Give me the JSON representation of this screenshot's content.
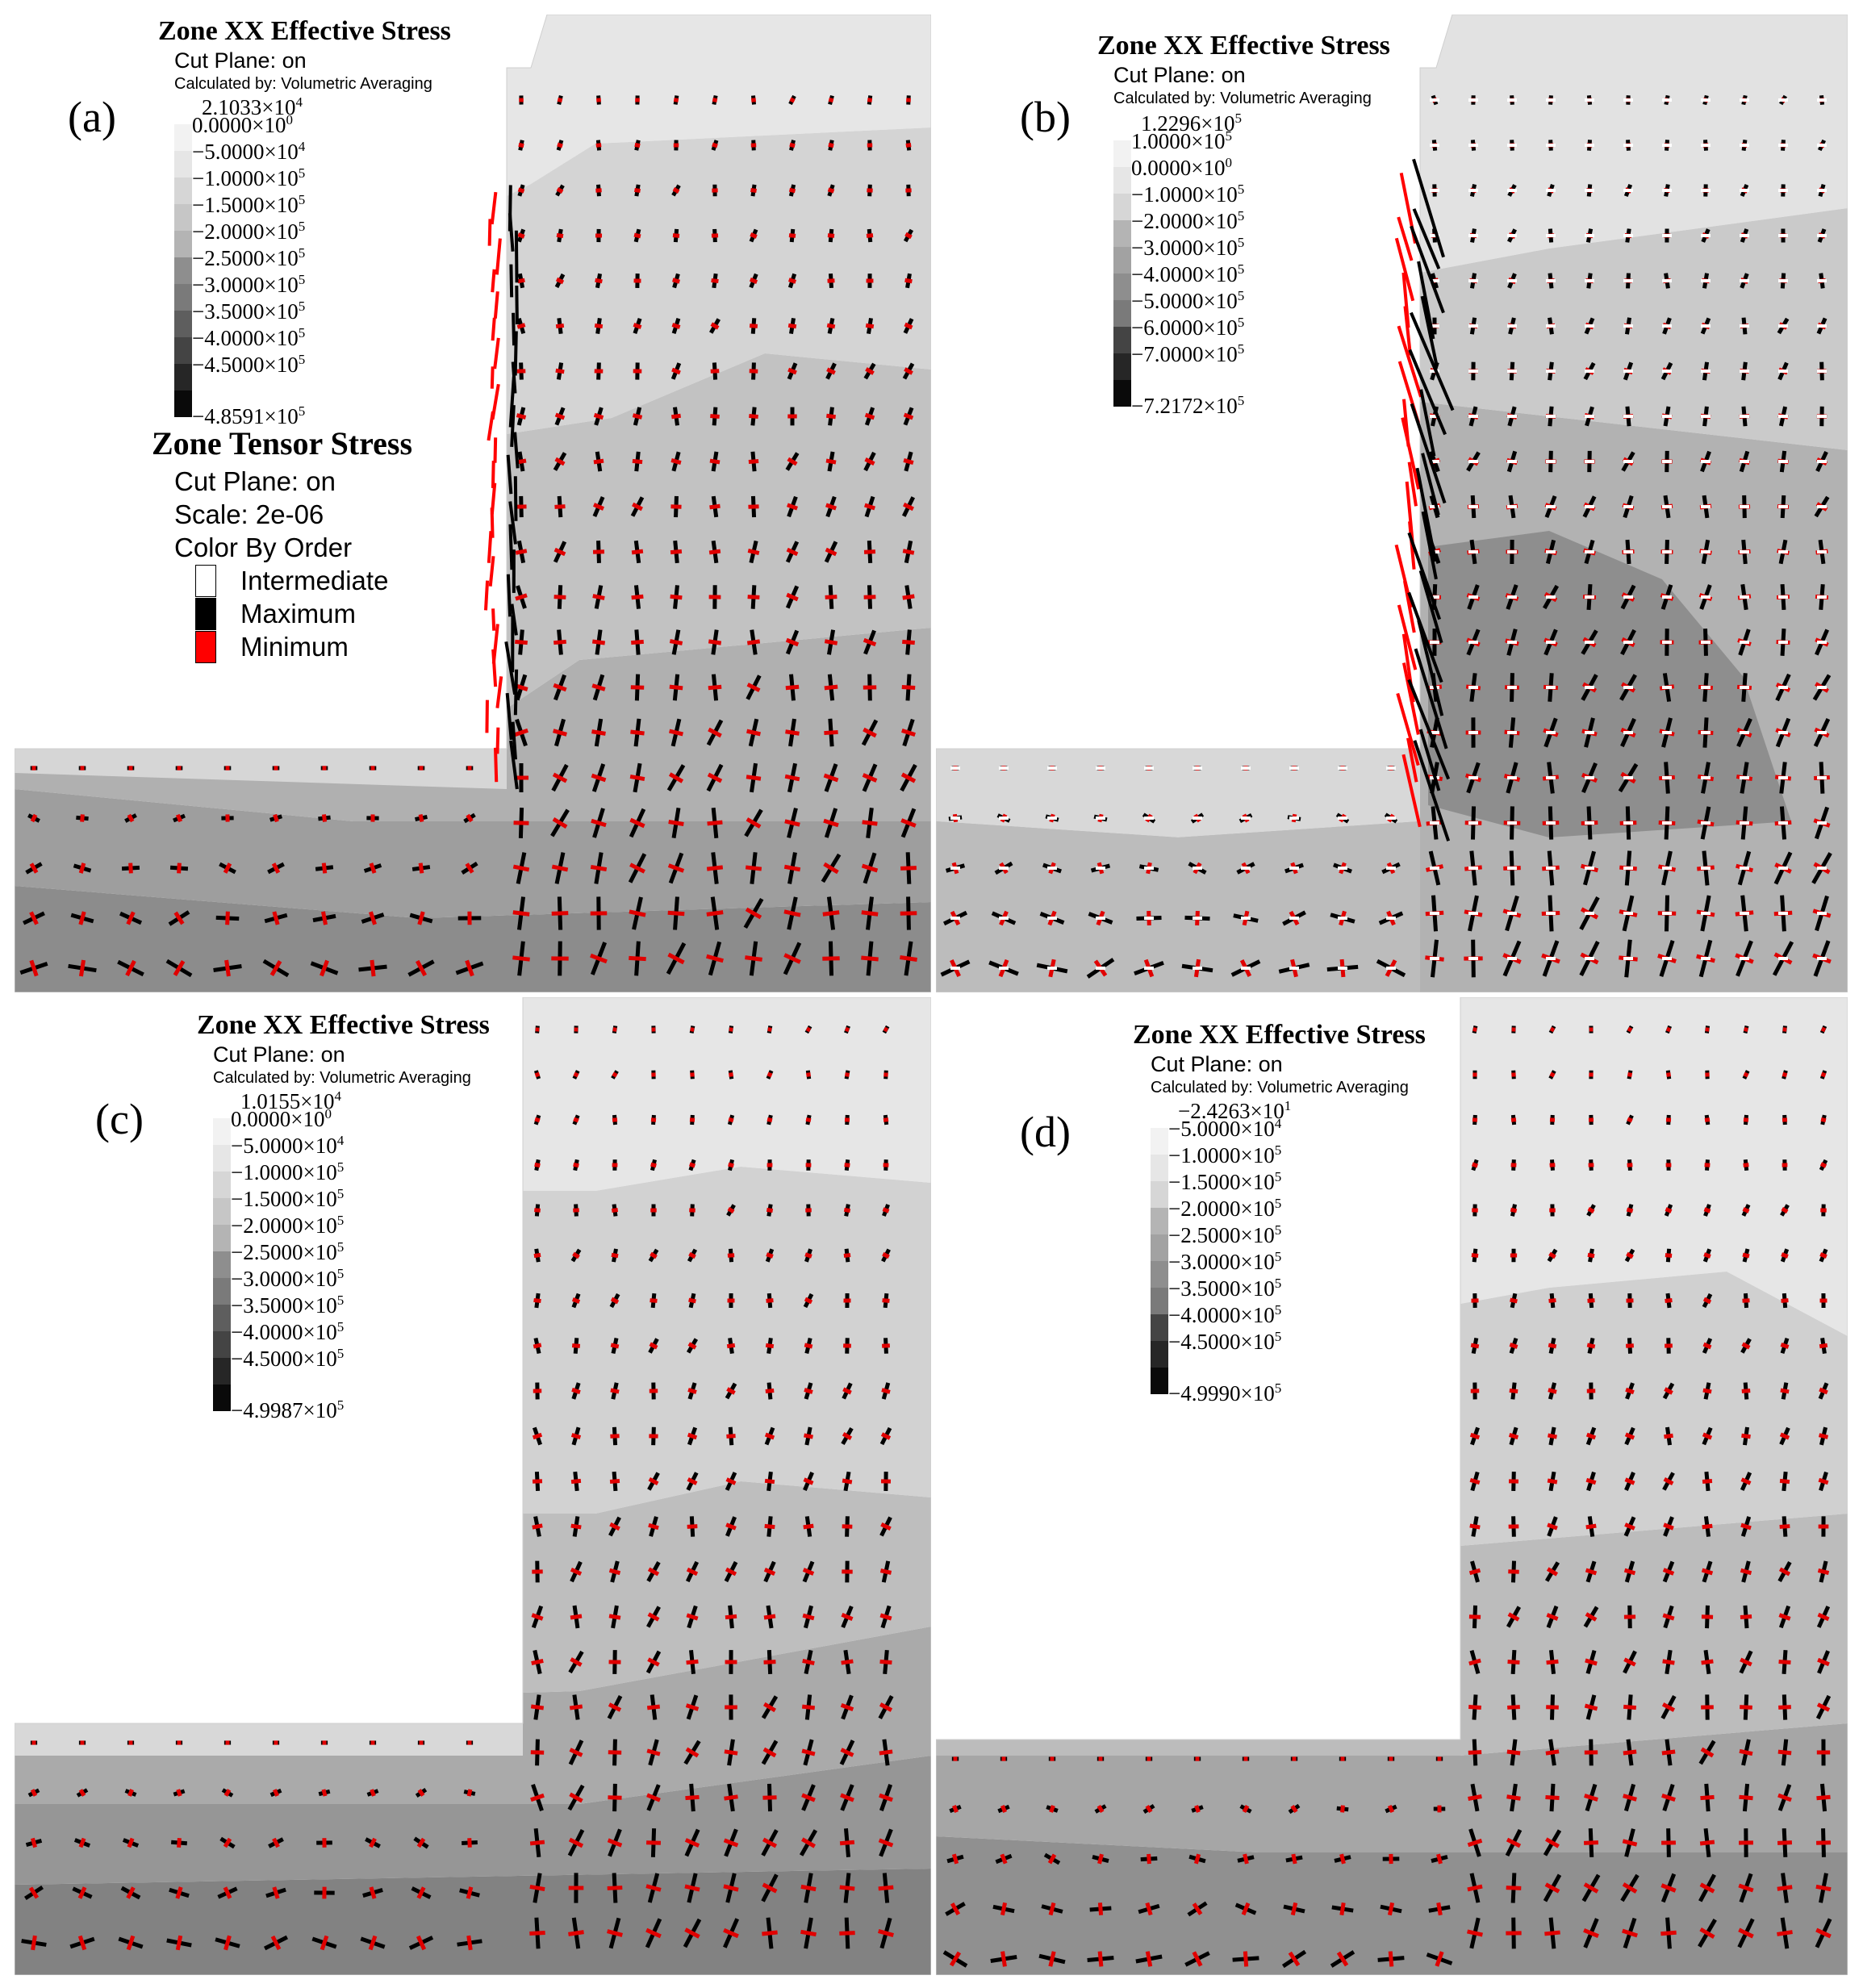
{
  "panels": [
    {
      "id": "a",
      "label": "(a)",
      "title": "Zone XX Effective Stress",
      "cut_plane": "Cut Plane: on",
      "calculated_by": "Calculated by: Volumetric Averaging",
      "legend_max": {
        "mant": "2.1033",
        "exp": "4",
        "sign": ""
      },
      "legend_rows": [
        {
          "mant": "0.0000",
          "exp": "0",
          "sign": ""
        },
        {
          "mant": "5.0000",
          "exp": "4",
          "sign": "−"
        },
        {
          "mant": "1.0000",
          "exp": "5",
          "sign": "−"
        },
        {
          "mant": "1.5000",
          "exp": "5",
          "sign": "−"
        },
        {
          "mant": "2.0000",
          "exp": "5",
          "sign": "−"
        },
        {
          "mant": "2.5000",
          "exp": "5",
          "sign": "−"
        },
        {
          "mant": "3.0000",
          "exp": "5",
          "sign": "−"
        },
        {
          "mant": "3.5000",
          "exp": "5",
          "sign": "−"
        },
        {
          "mant": "4.0000",
          "exp": "5",
          "sign": "−"
        },
        {
          "mant": "4.5000",
          "exp": "5",
          "sign": "−"
        }
      ],
      "legend_min": {
        "mant": "4.8591",
        "exp": "5",
        "sign": "−"
      },
      "tensor": {
        "title": "Zone Tensor Stress",
        "cut_plane": "Cut Plane: on",
        "scale": "Scale: 2e-06",
        "color_by": "Color By Order",
        "keys": [
          {
            "label": "Intermediate",
            "color": "#ffffff"
          },
          {
            "label": "Maximum",
            "color": "#000000"
          },
          {
            "label": "Minimum",
            "color": "#ff0000"
          }
        ]
      }
    },
    {
      "id": "b",
      "label": "(b)",
      "title": "Zone XX Effective Stress",
      "cut_plane": "Cut Plane: on",
      "calculated_by": "Calculated by: Volumetric Averaging",
      "legend_max": {
        "mant": "1.2296",
        "exp": "5",
        "sign": ""
      },
      "legend_rows": [
        {
          "mant": "1.0000",
          "exp": "5",
          "sign": ""
        },
        {
          "mant": "0.0000",
          "exp": "0",
          "sign": ""
        },
        {
          "mant": "1.0000",
          "exp": "5",
          "sign": "−"
        },
        {
          "mant": "2.0000",
          "exp": "5",
          "sign": "−"
        },
        {
          "mant": "3.0000",
          "exp": "5",
          "sign": "−"
        },
        {
          "mant": "4.0000",
          "exp": "5",
          "sign": "−"
        },
        {
          "mant": "5.0000",
          "exp": "5",
          "sign": "−"
        },
        {
          "mant": "6.0000",
          "exp": "5",
          "sign": "−"
        },
        {
          "mant": "7.0000",
          "exp": "5",
          "sign": "−"
        }
      ],
      "legend_min": {
        "mant": "7.2172",
        "exp": "5",
        "sign": "−"
      }
    },
    {
      "id": "c",
      "label": "(c)",
      "title": "Zone XX Effective Stress",
      "cut_plane": "Cut Plane: on",
      "calculated_by": "Calculated by: Volumetric Averaging",
      "legend_max": {
        "mant": "1.0155",
        "exp": "4",
        "sign": ""
      },
      "legend_rows": [
        {
          "mant": "0.0000",
          "exp": "0",
          "sign": ""
        },
        {
          "mant": "5.0000",
          "exp": "4",
          "sign": "−"
        },
        {
          "mant": "1.0000",
          "exp": "5",
          "sign": "−"
        },
        {
          "mant": "1.5000",
          "exp": "5",
          "sign": "−"
        },
        {
          "mant": "2.0000",
          "exp": "5",
          "sign": "−"
        },
        {
          "mant": "2.5000",
          "exp": "5",
          "sign": "−"
        },
        {
          "mant": "3.0000",
          "exp": "5",
          "sign": "−"
        },
        {
          "mant": "3.5000",
          "exp": "5",
          "sign": "−"
        },
        {
          "mant": "4.0000",
          "exp": "5",
          "sign": "−"
        },
        {
          "mant": "4.5000",
          "exp": "5",
          "sign": "−"
        }
      ],
      "legend_min": {
        "mant": "4.9987",
        "exp": "5",
        "sign": "−"
      }
    },
    {
      "id": "d",
      "label": "(d)",
      "title": "Zone XX Effective Stress",
      "cut_plane": "Cut Plane: on",
      "calculated_by": "Calculated by: Volumetric Averaging",
      "legend_max": {
        "mant": "2.4263",
        "exp": "1",
        "sign": "−"
      },
      "legend_rows": [
        {
          "mant": "5.0000",
          "exp": "4",
          "sign": "−"
        },
        {
          "mant": "1.0000",
          "exp": "5",
          "sign": "−"
        },
        {
          "mant": "1.5000",
          "exp": "5",
          "sign": "−"
        },
        {
          "mant": "2.0000",
          "exp": "5",
          "sign": "−"
        },
        {
          "mant": "2.5000",
          "exp": "5",
          "sign": "−"
        },
        {
          "mant": "3.0000",
          "exp": "5",
          "sign": "−"
        },
        {
          "mant": "3.5000",
          "exp": "5",
          "sign": "−"
        },
        {
          "mant": "4.0000",
          "exp": "5",
          "sign": "−"
        },
        {
          "mant": "4.5000",
          "exp": "5",
          "sign": "−"
        }
      ],
      "legend_min": {
        "mant": "4.9990",
        "exp": "5",
        "sign": "−"
      }
    }
  ],
  "colors": {
    "maximum": "#000000",
    "minimum": "#ff0000",
    "intermediate": "#ffffff",
    "shades": [
      "#f2f2f2",
      "#e6e6e6",
      "#d6d6d6",
      "#c6c6c6",
      "#b4b4b4",
      "#a2a2a2",
      "#8e8e8e",
      "#7a7a7a",
      "#5e5e5e",
      "#444444",
      "#262626",
      "#0a0a0a"
    ]
  }
}
